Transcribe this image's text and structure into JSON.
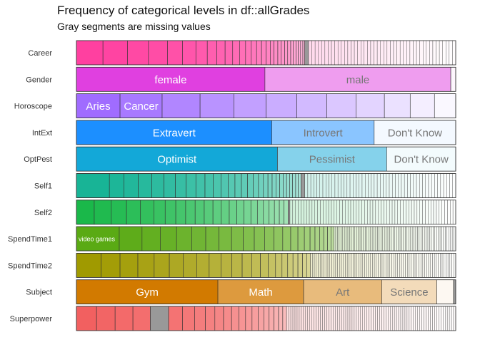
{
  "chart_data": {
    "type": "bar",
    "orientation": "horizontal-stacked-proportion",
    "title": "Frequency of categorical levels in df::allGrades",
    "subtitle": "Gray segments are missing values",
    "legend": "none",
    "grid": false,
    "missing_color": "#999999",
    "variables": [
      {
        "name": "Career",
        "color": "#FF40A0",
        "segments": [
          {
            "label": "",
            "value": 0.07
          },
          {
            "label": "",
            "value": 0.065
          },
          {
            "label": "",
            "value": 0.055
          },
          {
            "label": "",
            "value": 0.05
          },
          {
            "label": "",
            "value": 0.04
          },
          {
            "label": "",
            "value": 0.035
          },
          {
            "label": "",
            "value": 0.03
          },
          {
            "label": "",
            "value": 0.025
          },
          {
            "label": "",
            "value": 0.022
          },
          {
            "label": "",
            "value": 0.02
          },
          {
            "label": "",
            "value": 0.018
          },
          {
            "label": "",
            "value": 0.016
          },
          {
            "label": "",
            "value": 0.015
          },
          {
            "label": "",
            "value": 0.014
          },
          {
            "label": "",
            "value": 0.013
          },
          {
            "label": "",
            "value": 0.012
          },
          {
            "label": "",
            "value": 0.011
          },
          {
            "label": "",
            "value": 0.01
          },
          {
            "label": "",
            "value": 0.01
          },
          {
            "label": "",
            "value": 0.009
          },
          {
            "label": "",
            "value": 0.009
          },
          {
            "label": "",
            "value": 0.008
          },
          {
            "label": "",
            "value": 0.008
          },
          {
            "label": "",
            "value": 0.007
          },
          {
            "label": "",
            "value": 0.007
          },
          {
            "label": "",
            "value": 0.006
          },
          {
            "label": "",
            "value": 0.006
          },
          {
            "label": "",
            "value": 0.006
          },
          {
            "label": "",
            "value": 0.005
          },
          {
            "label": "",
            "value": 0.01,
            "missing": true
          }
        ],
        "tail_count": 45
      },
      {
        "name": "Gender",
        "color": "#E040E0",
        "segments": [
          {
            "label": "female",
            "value": 0.497
          },
          {
            "label": "male",
            "value": 0.49
          },
          {
            "label": "",
            "value": 0.013
          }
        ],
        "tail_count": 0
      },
      {
        "name": "Horoscope",
        "color": "#A06CFF",
        "segments": [
          {
            "label": "Aries",
            "value": 0.115
          },
          {
            "label": "Cancer",
            "value": 0.111
          },
          {
            "label": "",
            "value": 0.1
          },
          {
            "label": "",
            "value": 0.089
          },
          {
            "label": "",
            "value": 0.085
          },
          {
            "label": "",
            "value": 0.081
          },
          {
            "label": "",
            "value": 0.079
          },
          {
            "label": "",
            "value": 0.077
          },
          {
            "label": "",
            "value": 0.075
          },
          {
            "label": "",
            "value": 0.068
          },
          {
            "label": "",
            "value": 0.064
          },
          {
            "label": "",
            "value": 0.056
          }
        ],
        "tail_count": 0
      },
      {
        "name": "IntExt",
        "color": "#1C8FFF",
        "segments": [
          {
            "label": "Extravert",
            "value": 0.515
          },
          {
            "label": "Introvert",
            "value": 0.27
          },
          {
            "label": "Don't Know",
            "value": 0.215
          }
        ],
        "tail_count": 0
      },
      {
        "name": "OptPest",
        "color": "#13A8D8",
        "segments": [
          {
            "label": "Optimist",
            "value": 0.53
          },
          {
            "label": "Pessimist",
            "value": 0.288
          },
          {
            "label": "Don't Know",
            "value": 0.182
          }
        ],
        "tail_count": 0
      },
      {
        "name": "Self1",
        "color": "#18B496",
        "segments": [
          {
            "label": "",
            "value": 0.087
          },
          {
            "label": "",
            "value": 0.038
          },
          {
            "label": "",
            "value": 0.038
          },
          {
            "label": "",
            "value": 0.036
          },
          {
            "label": "",
            "value": 0.032
          },
          {
            "label": "",
            "value": 0.03
          },
          {
            "label": "",
            "value": 0.028
          },
          {
            "label": "",
            "value": 0.026
          },
          {
            "label": "",
            "value": 0.024
          },
          {
            "label": "",
            "value": 0.022
          },
          {
            "label": "",
            "value": 0.02
          },
          {
            "label": "",
            "value": 0.019
          },
          {
            "label": "",
            "value": 0.018
          },
          {
            "label": "",
            "value": 0.017
          },
          {
            "label": "",
            "value": 0.016
          },
          {
            "label": "",
            "value": 0.015
          },
          {
            "label": "",
            "value": 0.014
          },
          {
            "label": "",
            "value": 0.013
          },
          {
            "label": "",
            "value": 0.012
          },
          {
            "label": "",
            "value": 0.011
          },
          {
            "label": "",
            "value": 0.01
          },
          {
            "label": "",
            "value": 0.01
          },
          {
            "label": "",
            "value": 0.009
          },
          {
            "label": "",
            "value": 0.009
          },
          {
            "label": "",
            "value": 0.008
          },
          {
            "label": "",
            "value": 0.008
          },
          {
            "label": "",
            "value": 0.008
          },
          {
            "label": "",
            "value": 0.007
          },
          {
            "label": "",
            "value": 0.007
          },
          {
            "label": "",
            "value": 0.01,
            "missing": true
          }
        ],
        "tail_count": 50
      },
      {
        "name": "Self2",
        "color": "#1AB84A",
        "segments": [
          {
            "label": "",
            "value": 0.047
          },
          {
            "label": "",
            "value": 0.045
          },
          {
            "label": "",
            "value": 0.04
          },
          {
            "label": "",
            "value": 0.037
          },
          {
            "label": "",
            "value": 0.035
          },
          {
            "label": "",
            "value": 0.03
          },
          {
            "label": "",
            "value": 0.028
          },
          {
            "label": "",
            "value": 0.026
          },
          {
            "label": "",
            "value": 0.025
          },
          {
            "label": "",
            "value": 0.024
          },
          {
            "label": "",
            "value": 0.023
          },
          {
            "label": "",
            "value": 0.022
          },
          {
            "label": "",
            "value": 0.021
          },
          {
            "label": "",
            "value": 0.02
          },
          {
            "label": "",
            "value": 0.019
          },
          {
            "label": "",
            "value": 0.018
          },
          {
            "label": "",
            "value": 0.017
          },
          {
            "label": "",
            "value": 0.016
          },
          {
            "label": "",
            "value": 0.015
          },
          {
            "label": "",
            "value": 0.014
          },
          {
            "label": "",
            "value": 0.013
          },
          {
            "label": "",
            "value": 0.012
          },
          {
            "label": "",
            "value": 0.011
          },
          {
            "label": "",
            "value": 0.005,
            "missing": true
          }
        ],
        "tail_count": 60
      },
      {
        "name": "SpendTime1",
        "color": "#5AAA14",
        "segments": [
          {
            "label": "video games",
            "value": 0.113
          },
          {
            "label": "",
            "value": 0.06
          },
          {
            "label": "",
            "value": 0.048
          },
          {
            "label": "",
            "value": 0.043
          },
          {
            "label": "",
            "value": 0.04
          },
          {
            "label": "",
            "value": 0.037
          },
          {
            "label": "",
            "value": 0.035
          },
          {
            "label": "",
            "value": 0.033
          },
          {
            "label": "",
            "value": 0.031
          },
          {
            "label": "",
            "value": 0.029
          },
          {
            "label": "",
            "value": 0.027
          },
          {
            "label": "",
            "value": 0.025
          },
          {
            "label": "",
            "value": 0.023
          },
          {
            "label": "",
            "value": 0.021
          },
          {
            "label": "",
            "value": 0.019
          },
          {
            "label": "",
            "value": 0.017
          },
          {
            "label": "",
            "value": 0.015
          },
          {
            "label": "",
            "value": 0.013
          },
          {
            "label": "",
            "value": 0.012
          },
          {
            "label": "",
            "value": 0.011
          },
          {
            "label": "",
            "value": 0.01
          },
          {
            "label": "",
            "value": 0.009
          },
          {
            "label": "",
            "value": 0.008
          }
        ],
        "tail_count": 70
      },
      {
        "name": "SpendTime2",
        "color": "#A09A00",
        "segments": [
          {
            "label": "",
            "value": 0.065
          },
          {
            "label": "",
            "value": 0.05
          },
          {
            "label": "",
            "value": 0.047
          },
          {
            "label": "",
            "value": 0.043
          },
          {
            "label": "",
            "value": 0.04
          },
          {
            "label": "",
            "value": 0.037
          },
          {
            "label": "",
            "value": 0.035
          },
          {
            "label": "",
            "value": 0.033
          },
          {
            "label": "",
            "value": 0.031
          },
          {
            "label": "",
            "value": 0.029
          },
          {
            "label": "",
            "value": 0.027
          },
          {
            "label": "",
            "value": 0.025
          },
          {
            "label": "",
            "value": 0.023
          },
          {
            "label": "",
            "value": 0.021
          },
          {
            "label": "",
            "value": 0.019
          },
          {
            "label": "",
            "value": 0.017
          },
          {
            "label": "",
            "value": 0.015
          },
          {
            "label": "",
            "value": 0.014
          },
          {
            "label": "",
            "value": 0.013
          },
          {
            "label": "",
            "value": 0.012
          },
          {
            "label": "",
            "value": 0.011
          },
          {
            "label": "",
            "value": 0.01
          }
        ],
        "tail_count": 75
      },
      {
        "name": "Subject",
        "color": "#D27A00",
        "segments": [
          {
            "label": "Gym",
            "value": 0.373
          },
          {
            "label": "Math",
            "value": 0.226
          },
          {
            "label": "Art",
            "value": 0.206
          },
          {
            "label": "Science",
            "value": 0.145
          },
          {
            "label": "",
            "value": 0.044
          },
          {
            "label": "",
            "value": 0.006,
            "missing": true
          }
        ],
        "tail_count": 0
      },
      {
        "name": "Superpower",
        "color": "#F26060",
        "segments": [
          {
            "label": "",
            "value": 0.053
          },
          {
            "label": "",
            "value": 0.049
          },
          {
            "label": "",
            "value": 0.047
          },
          {
            "label": "",
            "value": 0.046
          },
          {
            "label": "",
            "value": 0.048,
            "missing": true
          },
          {
            "label": "",
            "value": 0.037
          },
          {
            "label": "",
            "value": 0.032
          },
          {
            "label": "",
            "value": 0.028
          },
          {
            "label": "",
            "value": 0.025
          },
          {
            "label": "",
            "value": 0.023
          },
          {
            "label": "",
            "value": 0.021
          },
          {
            "label": "",
            "value": 0.019
          },
          {
            "label": "",
            "value": 0.018
          },
          {
            "label": "",
            "value": 0.017
          },
          {
            "label": "",
            "value": 0.016
          },
          {
            "label": "",
            "value": 0.015
          },
          {
            "label": "",
            "value": 0.014
          },
          {
            "label": "",
            "value": 0.013
          },
          {
            "label": "",
            "value": 0.012
          },
          {
            "label": "",
            "value": 0.011
          },
          {
            "label": "",
            "value": 0.01
          }
        ],
        "tail_count": 80
      }
    ]
  }
}
